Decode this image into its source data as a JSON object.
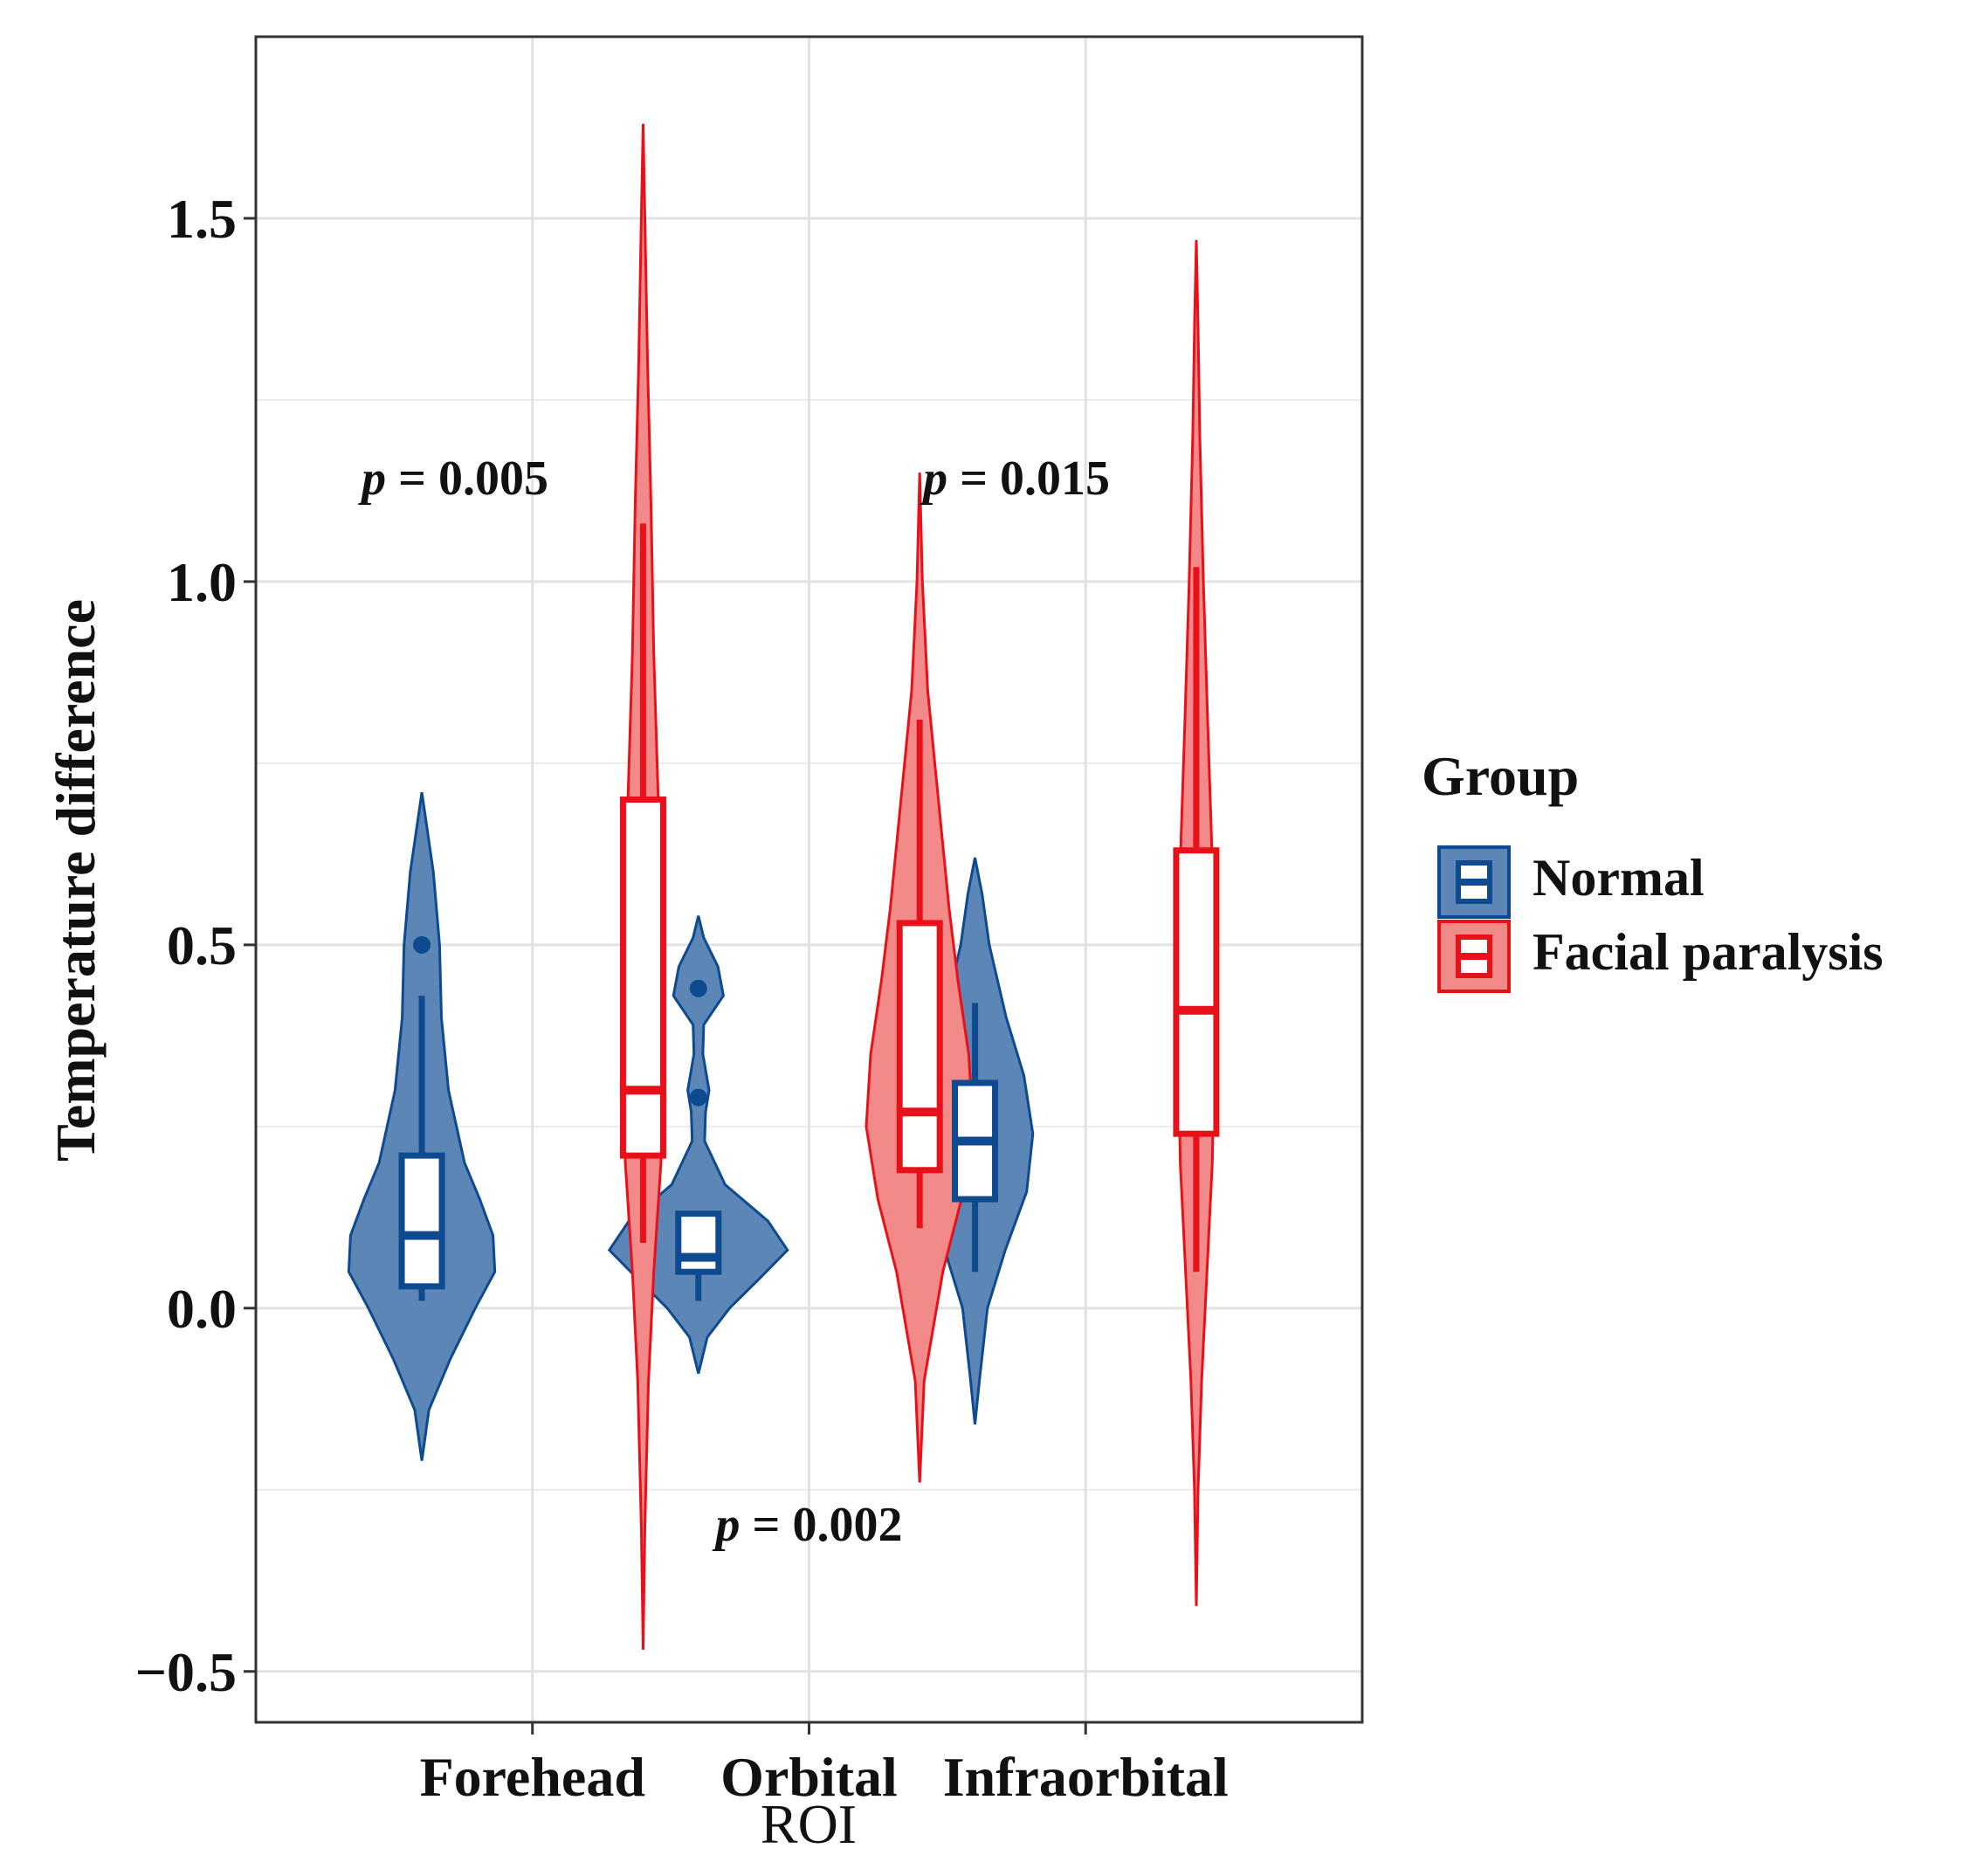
{
  "chart_data": {
    "type": "violin",
    "xlabel": "ROI",
    "ylabel": "Temperature difference",
    "ylim": [
      -0.57,
      1.75
    ],
    "yticks": [
      -0.5,
      0.0,
      0.5,
      1.0,
      1.5
    ],
    "ytick_labels": [
      "−0.5",
      "0.0",
      "0.5",
      "1.0",
      "1.5"
    ],
    "categories": [
      "Forehead",
      "Orbital",
      "Infraorbital"
    ],
    "legend": {
      "title": "Group",
      "entries": [
        "Normal",
        "Facial paralysis"
      ],
      "position": "right"
    },
    "series": [
      {
        "name": "Normal",
        "color": "#0e4a8f",
        "fill": "#5b86b6",
        "groups": [
          {
            "category": "Forehead",
            "violin_min": -0.21,
            "violin_max": 0.71,
            "box": {
              "q1": 0.03,
              "median": 0.1,
              "q3": 0.21,
              "whisker_low": 0.01,
              "whisker_high": 0.43
            },
            "outliers": [
              0.5
            ],
            "density": [
              [
                -0.21,
                0.0
              ],
              [
                -0.14,
                0.08
              ],
              [
                -0.07,
                0.32
              ],
              [
                0.0,
                0.6
              ],
              [
                0.05,
                0.82
              ],
              [
                0.1,
                0.8
              ],
              [
                0.15,
                0.65
              ],
              [
                0.2,
                0.48
              ],
              [
                0.3,
                0.3
              ],
              [
                0.4,
                0.22
              ],
              [
                0.5,
                0.2
              ],
              [
                0.6,
                0.13
              ],
              [
                0.71,
                0.0
              ]
            ]
          },
          {
            "category": "Orbital",
            "violin_min": -0.09,
            "violin_max": 0.54,
            "box": {
              "q1": 0.05,
              "median": 0.07,
              "q3": 0.13,
              "whisker_low": 0.01,
              "whisker_high": 0.13
            },
            "outliers": [
              0.29,
              0.44
            ],
            "density": [
              [
                -0.09,
                0.0
              ],
              [
                -0.04,
                0.1
              ],
              [
                0.0,
                0.35
              ],
              [
                0.04,
                0.68
              ],
              [
                0.08,
                1.0
              ],
              [
                0.12,
                0.78
              ],
              [
                0.17,
                0.3
              ],
              [
                0.23,
                0.07
              ],
              [
                0.27,
                0.08
              ],
              [
                0.3,
                0.12
              ],
              [
                0.35,
                0.05
              ],
              [
                0.39,
                0.06
              ],
              [
                0.43,
                0.28
              ],
              [
                0.47,
                0.22
              ],
              [
                0.51,
                0.06
              ],
              [
                0.54,
                0.0
              ]
            ]
          },
          {
            "category": "Infraorbital",
            "violin_min": -0.16,
            "violin_max": 0.62,
            "box": {
              "q1": 0.15,
              "median": 0.23,
              "q3": 0.31,
              "whisker_low": 0.05,
              "whisker_high": 0.42
            },
            "outliers": [],
            "density": [
              [
                -0.16,
                0.0
              ],
              [
                -0.1,
                0.05
              ],
              [
                0.0,
                0.14
              ],
              [
                0.08,
                0.34
              ],
              [
                0.16,
                0.58
              ],
              [
                0.24,
                0.65
              ],
              [
                0.32,
                0.55
              ],
              [
                0.4,
                0.35
              ],
              [
                0.5,
                0.16
              ],
              [
                0.57,
                0.08
              ],
              [
                0.62,
                0.0
              ]
            ]
          }
        ]
      },
      {
        "name": "Facial paralysis",
        "color": "#e8111a",
        "fill": "#f28a8a",
        "groups": [
          {
            "category": "Forehead",
            "violin_min": -0.47,
            "violin_max": 1.63,
            "box": {
              "q1": 0.21,
              "median": 0.3,
              "q3": 0.7,
              "whisker_low": 0.09,
              "whisker_high": 1.08
            },
            "outliers": [],
            "density": [
              [
                -0.47,
                0.0
              ],
              [
                -0.3,
                0.02
              ],
              [
                -0.1,
                0.06
              ],
              [
                0.05,
                0.12
              ],
              [
                0.2,
                0.2
              ],
              [
                0.35,
                0.23
              ],
              [
                0.5,
                0.21
              ],
              [
                0.7,
                0.17
              ],
              [
                0.9,
                0.12
              ],
              [
                1.1,
                0.09
              ],
              [
                1.3,
                0.05
              ],
              [
                1.5,
                0.02
              ],
              [
                1.63,
                0.0
              ]
            ]
          },
          {
            "category": "Orbital",
            "violin_min": -0.24,
            "violin_max": 1.15,
            "box": {
              "q1": 0.19,
              "median": 0.27,
              "q3": 0.53,
              "whisker_low": 0.11,
              "whisker_high": 0.81
            },
            "outliers": [],
            "density": [
              [
                -0.24,
                0.0
              ],
              [
                -0.1,
                0.05
              ],
              [
                0.05,
                0.26
              ],
              [
                0.15,
                0.47
              ],
              [
                0.25,
                0.6
              ],
              [
                0.35,
                0.55
              ],
              [
                0.45,
                0.43
              ],
              [
                0.55,
                0.33
              ],
              [
                0.65,
                0.25
              ],
              [
                0.75,
                0.17
              ],
              [
                0.85,
                0.09
              ],
              [
                1.0,
                0.03
              ],
              [
                1.15,
                0.0
              ]
            ]
          },
          {
            "category": "Infraorbital",
            "violin_min": -0.41,
            "violin_max": 1.47,
            "box": {
              "q1": 0.24,
              "median": 0.41,
              "q3": 0.63,
              "whisker_low": 0.05,
              "whisker_high": 1.02
            },
            "outliers": [],
            "density": [
              [
                -0.41,
                0.0
              ],
              [
                -0.25,
                0.02
              ],
              [
                -0.1,
                0.06
              ],
              [
                0.05,
                0.12
              ],
              [
                0.2,
                0.18
              ],
              [
                0.35,
                0.2
              ],
              [
                0.5,
                0.2
              ],
              [
                0.65,
                0.17
              ],
              [
                0.8,
                0.13
              ],
              [
                1.0,
                0.08
              ],
              [
                1.2,
                0.04
              ],
              [
                1.35,
                0.02
              ],
              [
                1.47,
                0.0
              ]
            ]
          }
        ]
      }
    ],
    "annotations": [
      {
        "category": "Forehead",
        "label_p": "p",
        "label_rest": " = 0.005",
        "y": 1.12,
        "offset": -0.28
      },
      {
        "category": "Orbital",
        "label_p": "p",
        "label_rest": " = 0.002",
        "y": -0.32,
        "offset": 0.0
      },
      {
        "category": "Infraorbital",
        "label_p": "p",
        "label_rest": " = 0.015",
        "y": 1.12,
        "offset": -0.25
      }
    ]
  }
}
